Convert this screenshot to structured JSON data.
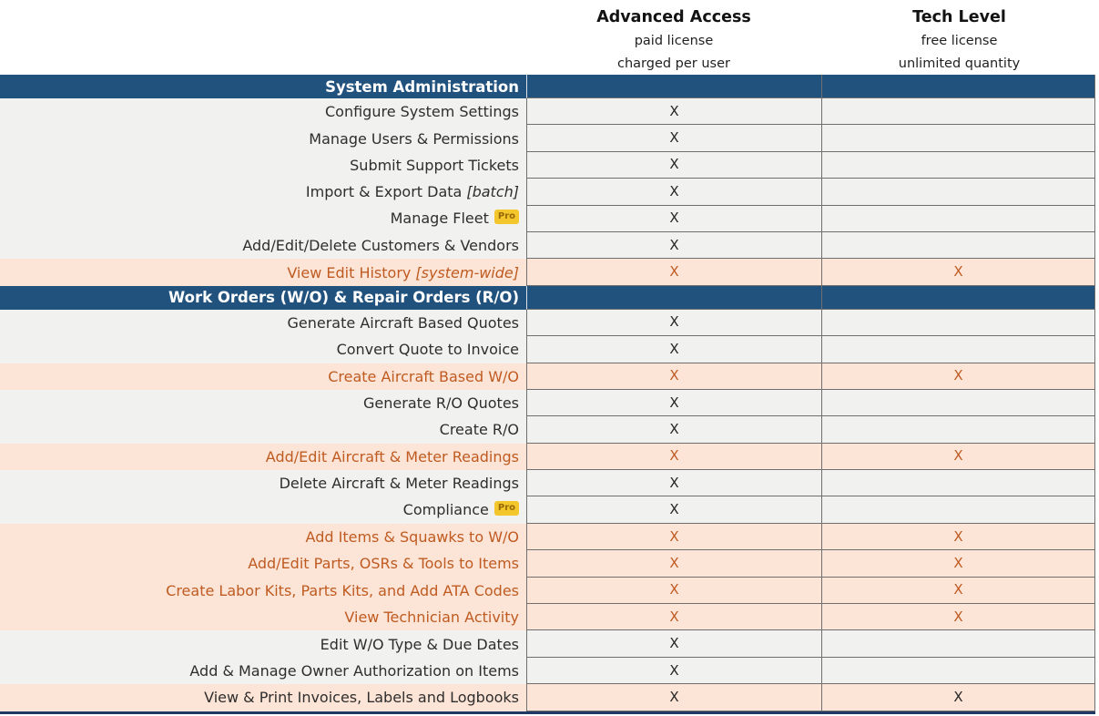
{
  "columns": {
    "advanced": {
      "title": "Advanced Access",
      "sub1": "paid license",
      "sub2": "charged per user"
    },
    "tech": {
      "title": "Tech Level",
      "sub1": "free license",
      "sub2": "unlimited quantity"
    }
  },
  "x_mark": "X",
  "pro_badge_label": "Pro",
  "colors": {
    "section_header_bg": "#21527d",
    "highlight_row_bg": "#fce4d6",
    "highlight_text": "#bf5b21",
    "normal_row_bg": "#f1f1f0",
    "bottom_border": "#1f3864",
    "pro_badge_bg": "#f3c72c",
    "pro_badge_text": "#96690a"
  },
  "rows": [
    {
      "type": "section",
      "label": "System Administration"
    },
    {
      "type": "feature",
      "label": "Configure System Settings",
      "advanced": true,
      "tech": false,
      "highlight": false
    },
    {
      "type": "feature",
      "label": "Manage Users & Permissions",
      "advanced": true,
      "tech": false,
      "highlight": false
    },
    {
      "type": "feature",
      "label": "Submit Support Tickets",
      "advanced": true,
      "tech": false,
      "highlight": false
    },
    {
      "type": "feature",
      "label": "Import & Export Data",
      "label_italic": "[batch]",
      "advanced": true,
      "tech": false,
      "highlight": false
    },
    {
      "type": "feature",
      "label": "Manage Fleet",
      "pro": true,
      "advanced": true,
      "tech": false,
      "highlight": false
    },
    {
      "type": "feature",
      "label": "Add/Edit/Delete Customers & Vendors",
      "advanced": true,
      "tech": false,
      "highlight": false
    },
    {
      "type": "feature",
      "label": "View Edit History",
      "label_italic": "[system-wide]",
      "advanced": true,
      "tech": true,
      "highlight": true
    },
    {
      "type": "section",
      "label": "Work Orders (W/O) & Repair Orders (R/O)"
    },
    {
      "type": "feature",
      "label": "Generate Aircraft Based Quotes",
      "advanced": true,
      "tech": false,
      "highlight": false
    },
    {
      "type": "feature",
      "label": "Convert Quote to Invoice",
      "advanced": true,
      "tech": false,
      "highlight": false
    },
    {
      "type": "feature",
      "label": "Create Aircraft Based W/O",
      "advanced": true,
      "tech": true,
      "highlight": true
    },
    {
      "type": "feature",
      "label": "Generate R/O Quotes",
      "advanced": true,
      "tech": false,
      "highlight": false
    },
    {
      "type": "feature",
      "label": "Create R/O",
      "advanced": true,
      "tech": false,
      "highlight": false
    },
    {
      "type": "feature",
      "label": "Add/Edit Aircraft & Meter Readings",
      "advanced": true,
      "tech": true,
      "highlight": true
    },
    {
      "type": "feature",
      "label": "Delete Aircraft & Meter Readings",
      "advanced": true,
      "tech": false,
      "highlight": false
    },
    {
      "type": "feature",
      "label": "Compliance",
      "pro": true,
      "advanced": true,
      "tech": false,
      "highlight": false
    },
    {
      "type": "feature",
      "label": "Add Items & Squawks to W/O",
      "advanced": true,
      "tech": true,
      "highlight": true
    },
    {
      "type": "feature",
      "label": "Add/Edit Parts, OSRs & Tools to Items",
      "advanced": true,
      "tech": true,
      "highlight": true
    },
    {
      "type": "feature",
      "label": "Create Labor Kits, Parts Kits, and Add ATA Codes",
      "advanced": true,
      "tech": true,
      "highlight": true
    },
    {
      "type": "feature",
      "label": "View Technician Activity",
      "advanced": true,
      "tech": true,
      "highlight": true
    },
    {
      "type": "feature",
      "label": "Edit W/O Type & Due Dates",
      "advanced": true,
      "tech": false,
      "highlight": false
    },
    {
      "type": "feature",
      "label": "Add & Manage Owner Authorization on Items",
      "advanced": true,
      "tech": false,
      "highlight": false
    },
    {
      "type": "feature",
      "label": "View & Print Invoices, Labels and Logbooks",
      "advanced": true,
      "tech": true,
      "highlight": true,
      "dark_text": true
    }
  ]
}
